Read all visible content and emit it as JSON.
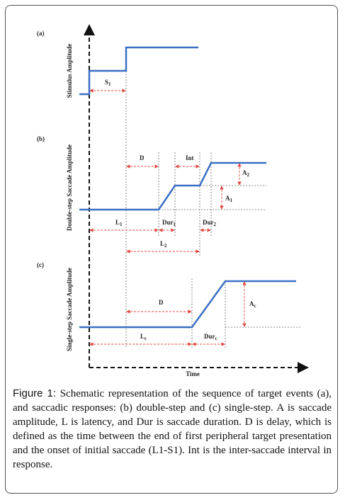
{
  "figure": {
    "panels": [
      {
        "label": "(a)",
        "ylabel": "Stimulus Amplitude"
      },
      {
        "label": "(b)",
        "ylabel": "Double-step Saccade Amplitude"
      },
      {
        "label": "(c)",
        "ylabel": "Single-step Saccade Amplitude"
      }
    ],
    "xlabel": "Time",
    "annotations": [
      {
        "main": "S",
        "sub": "1"
      },
      {
        "main": "D"
      },
      {
        "main": "Int"
      },
      {
        "main": "A",
        "sub": "2"
      },
      {
        "main": "A",
        "sub": "1"
      },
      {
        "main": "L",
        "sub": "1"
      },
      {
        "main": "Dur",
        "sub": "1"
      },
      {
        "main": "Dur",
        "sub": "2"
      },
      {
        "main": "L",
        "sub": "2"
      },
      {
        "main": "D"
      },
      {
        "main": "A",
        "sub": "c"
      },
      {
        "main": "L",
        "sub": "c"
      },
      {
        "main": "Dur",
        "sub": "c"
      }
    ]
  },
  "caption": {
    "label": "Figure 1:",
    "text": "Schematic representation of the sequence of target events (a), and saccadic responses: (b) double-step and (c) single-step. A is saccade amplitude, L is latency, and Dur is saccade duration. D is delay, which is defined as the time between the end of first peripheral target presentation and the onset of initial saccade (L1-S1). Int is the inter-saccade interval in response."
  }
}
